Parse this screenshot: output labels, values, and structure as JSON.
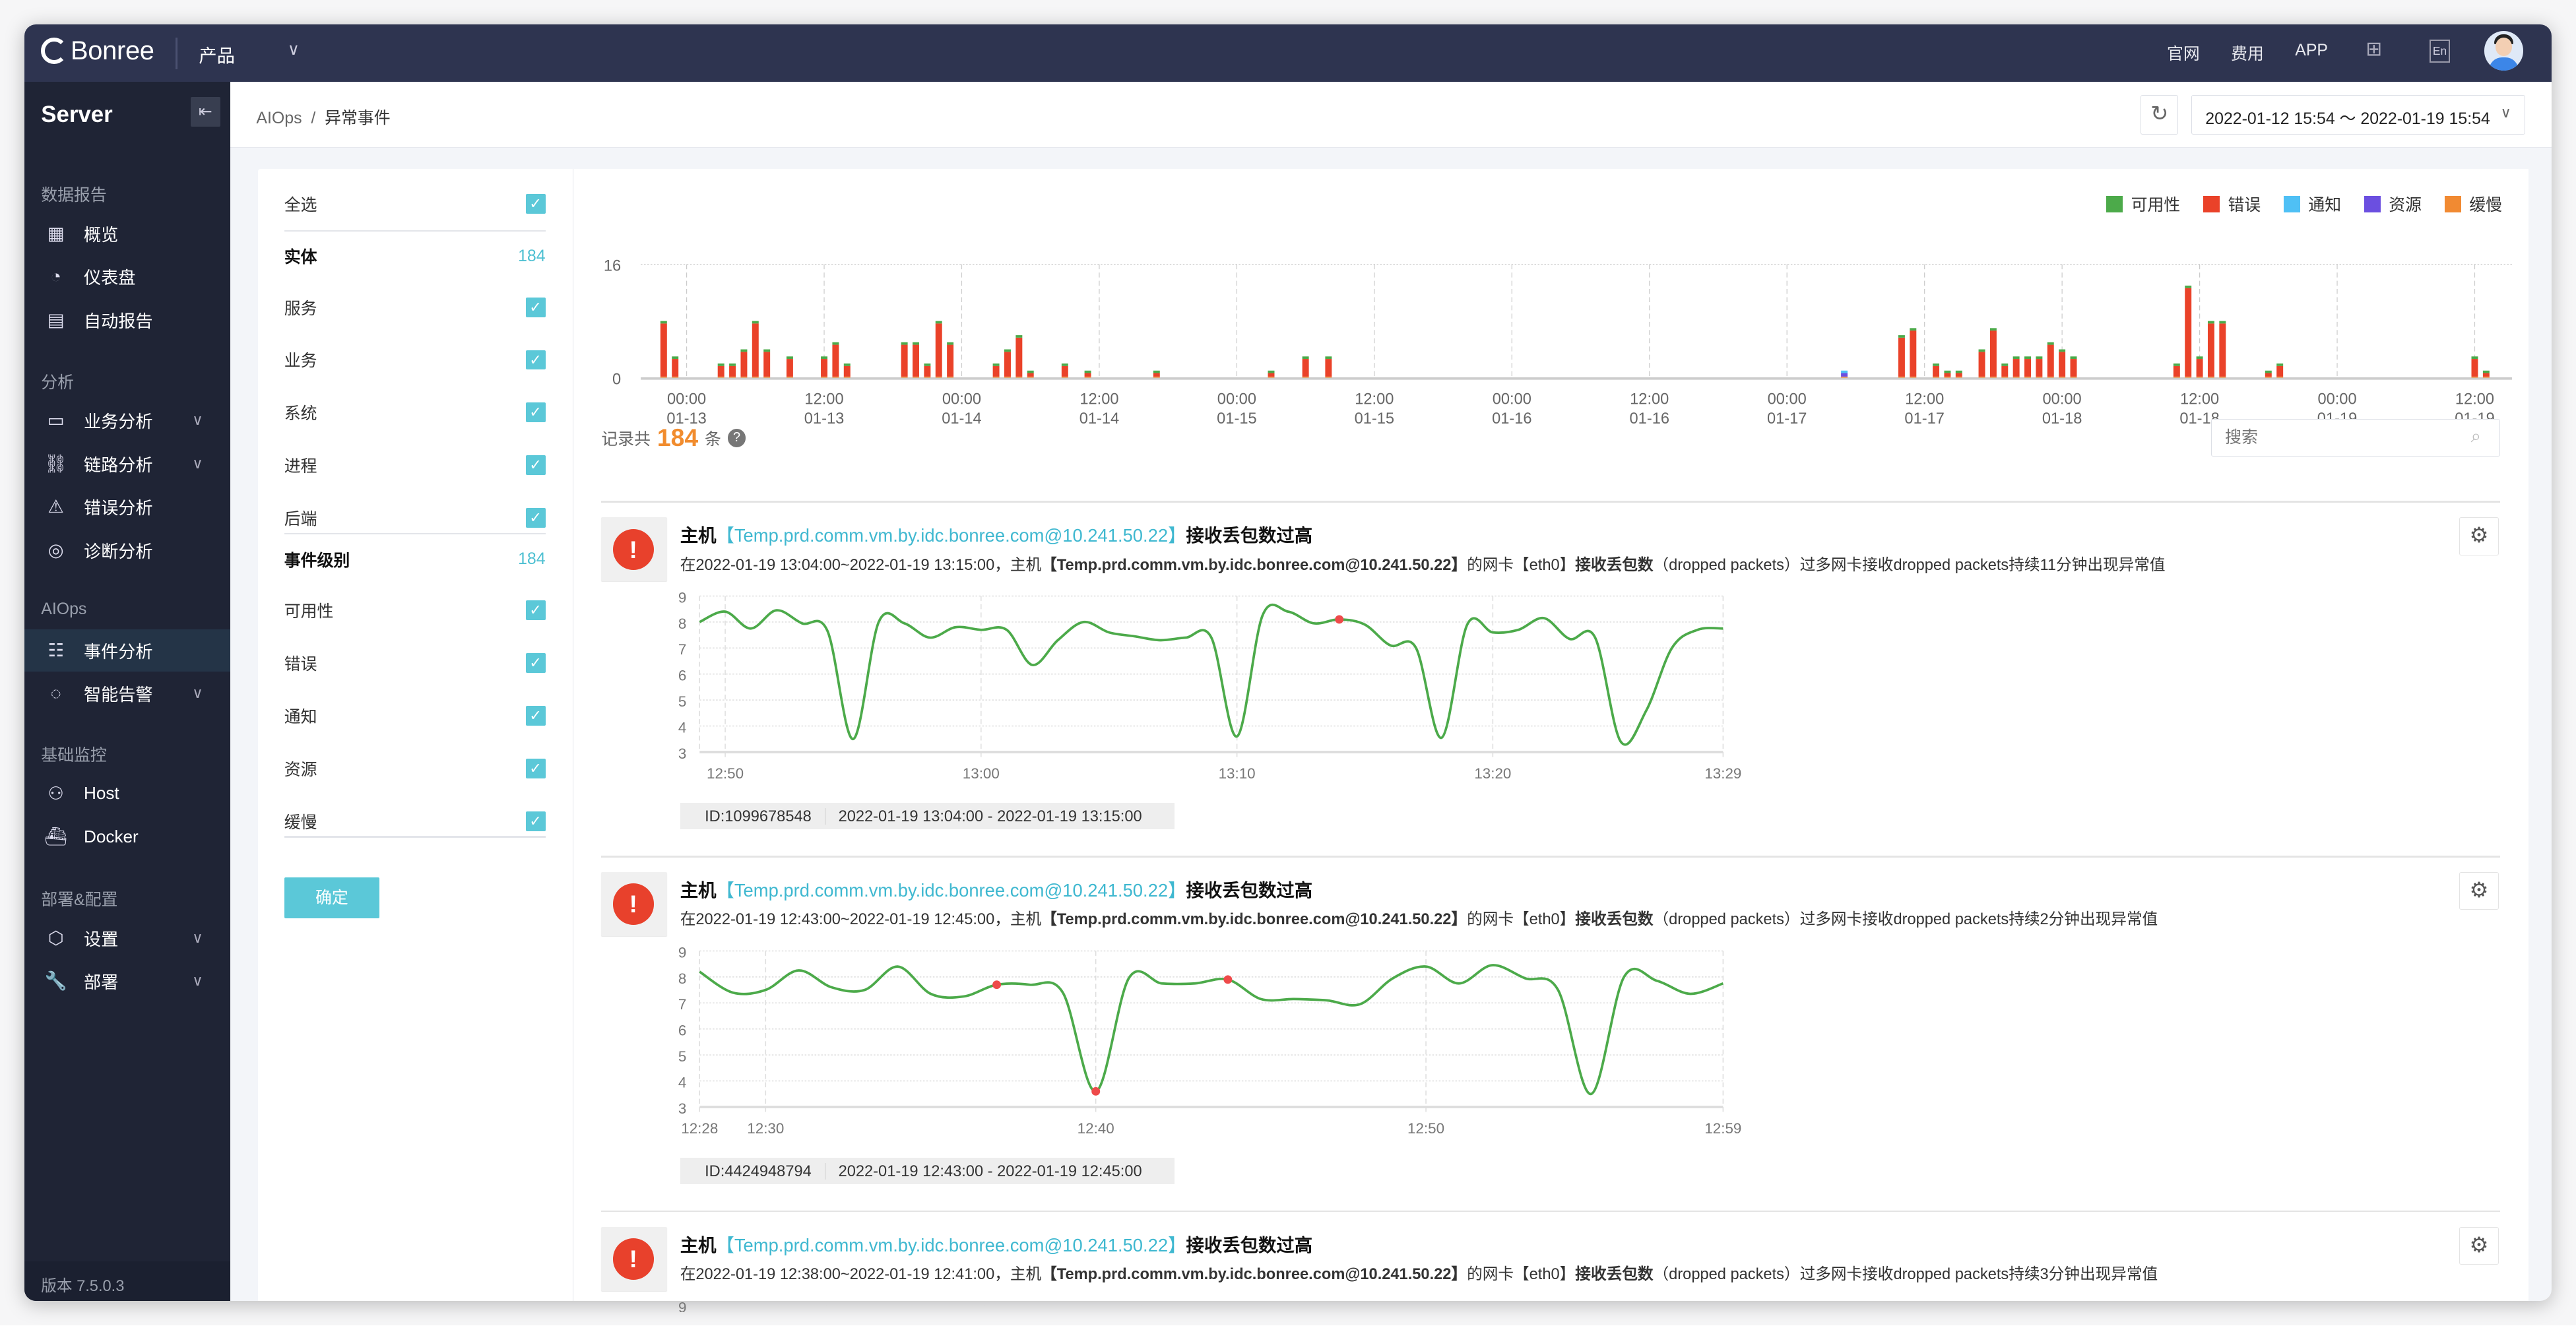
{
  "topbar": {
    "brand": "Bonree",
    "product_menu": "产品",
    "links": [
      "官网",
      "费用",
      "APP"
    ],
    "icons": [
      "qrcode-icon",
      "language-en-icon"
    ],
    "lang_label": "En"
  },
  "sidebar": {
    "title": "Server",
    "version": "版本 7.5.0.3",
    "sections": [
      {
        "label": "数据报告",
        "items": [
          {
            "label": "概览",
            "icon": "grid-icon",
            "glyph": "▦"
          },
          {
            "label": "仪表盘",
            "icon": "gauge-icon",
            "glyph": "◔"
          },
          {
            "label": "自动报告",
            "icon": "report-icon",
            "glyph": "▤"
          }
        ]
      },
      {
        "label": "分析",
        "items": [
          {
            "label": "业务分析",
            "icon": "monitor-chart-icon",
            "glyph": "▭",
            "expandable": true
          },
          {
            "label": "链路分析",
            "icon": "link-icon",
            "glyph": "⛓",
            "expandable": true
          },
          {
            "label": "错误分析",
            "icon": "warning-icon",
            "glyph": "⚠"
          },
          {
            "label": "诊断分析",
            "icon": "pulse-icon",
            "glyph": "◎"
          }
        ]
      },
      {
        "label": "AIOps",
        "items": [
          {
            "label": "事件分析",
            "icon": "event-list-icon",
            "glyph": "☷",
            "active": true
          },
          {
            "label": "智能告警",
            "icon": "alarm-icon",
            "glyph": "◌",
            "expandable": true
          }
        ]
      },
      {
        "label": "基础监控",
        "items": [
          {
            "label": "Host",
            "icon": "host-icon",
            "glyph": "⚇"
          },
          {
            "label": "Docker",
            "icon": "docker-icon",
            "glyph": "⛴"
          }
        ]
      },
      {
        "label": "部署&配置",
        "items": [
          {
            "label": "设置",
            "icon": "settings-icon",
            "glyph": "⬡",
            "expandable": true
          },
          {
            "label": "部署",
            "icon": "wrench-icon",
            "glyph": "🔧",
            "expandable": true
          }
        ]
      }
    ]
  },
  "header": {
    "breadcrumb": [
      "AIOps",
      "异常事件"
    ],
    "date_range": "2022-01-12 15:54 ～ 2022-01-19 15:54"
  },
  "filter": {
    "select_all": {
      "label": "全选",
      "checked": true
    },
    "groups": [
      {
        "label": "实体",
        "count": "184",
        "items": [
          {
            "label": "服务",
            "checked": true
          },
          {
            "label": "业务",
            "checked": true
          },
          {
            "label": "系统",
            "checked": true
          },
          {
            "label": "进程",
            "checked": true
          },
          {
            "label": "后端",
            "checked": true
          }
        ]
      },
      {
        "label": "事件级别",
        "count": "184",
        "items": [
          {
            "label": "可用性",
            "checked": true
          },
          {
            "label": "错误",
            "checked": true
          },
          {
            "label": "通知",
            "checked": true
          },
          {
            "label": "资源",
            "checked": true
          },
          {
            "label": "缓慢",
            "checked": true
          }
        ]
      }
    ],
    "confirm": "确定"
  },
  "summary": {
    "prefix": "记录共",
    "count": "184",
    "suffix": "条"
  },
  "search": {
    "placeholder": "搜索",
    "value": ""
  },
  "chart_data": [
    {
      "type": "bar",
      "stacked": true,
      "ylim": [
        0,
        16
      ],
      "yticks": [
        "0",
        "16"
      ],
      "xlim": [
        "01-12 20:00",
        "01-19 15:15"
      ],
      "xticks": [
        [
          "00:00",
          "01-13"
        ],
        [
          "12:00",
          "01-13"
        ],
        [
          "00:00",
          "01-14"
        ],
        [
          "12:00",
          "01-14"
        ],
        [
          "00:00",
          "01-15"
        ],
        [
          "12:00",
          "01-15"
        ],
        [
          "00:00",
          "01-16"
        ],
        [
          "12:00",
          "01-16"
        ],
        [
          "00:00",
          "01-17"
        ],
        [
          "12:00",
          "01-17"
        ],
        [
          "00:00",
          "01-18"
        ],
        [
          "12:00",
          "01-18"
        ],
        [
          "00:00",
          "01-19"
        ],
        [
          "12:00",
          "01-19"
        ]
      ],
      "legend_position": "top-right",
      "grid": true,
      "categories": [
        "01-12 22:00",
        "01-12 23:00",
        "01-13 03:00",
        "01-13 04:00",
        "01-13 05:00",
        "01-13 06:00",
        "01-13 07:00",
        "01-13 09:00",
        "01-13 12:00",
        "01-13 13:00",
        "01-13 14:00",
        "01-13 19:00",
        "01-13 20:00",
        "01-13 21:00",
        "01-13 22:00",
        "01-13 23:00",
        "01-14 03:00",
        "01-14 04:00",
        "01-14 05:00",
        "01-14 06:00",
        "01-14 09:00",
        "01-14 11:00",
        "01-14 17:00",
        "01-15 03:00",
        "01-15 06:00",
        "01-15 08:00",
        "01-17 05:00",
        "01-17 10:00",
        "01-17 11:00",
        "01-17 13:00",
        "01-17 14:00",
        "01-17 15:00",
        "01-17 17:00",
        "01-17 18:00",
        "01-17 19:00",
        "01-17 20:00",
        "01-17 21:00",
        "01-17 22:00",
        "01-17 23:00",
        "01-18 00:00",
        "01-18 01:00",
        "01-18 10:00",
        "01-18 11:00",
        "01-18 12:00",
        "01-18 13:00",
        "01-18 14:00",
        "01-18 18:00",
        "01-18 19:00",
        "01-19 12:00",
        "01-19 13:00"
      ],
      "series": [
        {
          "name": "缓慢",
          "color": "#f18a32",
          "values": [
            0.15,
            0.15,
            0.15,
            0.15,
            0.15,
            0.15,
            0.15,
            0.15,
            0.15,
            0.15,
            0.15,
            0.15,
            0.15,
            0.15,
            0.15,
            0.15,
            0.15,
            0.15,
            0.15,
            0.15,
            0.15,
            0.15,
            0.15,
            0.15,
            0.15,
            0.15,
            0.15,
            0.15,
            0.15,
            0.15,
            0.15,
            0.15,
            0.15,
            0.15,
            0.15,
            0.15,
            0.15,
            0.15,
            0.15,
            0.15,
            0.15,
            0.15,
            0.15,
            0.15,
            0.15,
            0.15,
            0.15,
            0.15,
            0.15,
            0.15
          ]
        },
        {
          "name": "错误",
          "color": "#ea4229",
          "values": [
            7.5,
            2.5,
            1.5,
            1.5,
            3.5,
            7.5,
            3.5,
            2.5,
            2.5,
            4.5,
            1.5,
            4.5,
            4.5,
            1.5,
            7.5,
            4.5,
            1.5,
            3.5,
            5.5,
            0.5,
            1.5,
            0.5,
            0.5,
            0.5,
            2.5,
            2.5,
            0,
            5.5,
            6.5,
            1.5,
            0.5,
            0.5,
            3.5,
            6.5,
            1.5,
            2.5,
            2.5,
            2.5,
            4.5,
            3.5,
            2.5,
            1.5,
            12.5,
            2.5,
            7.5,
            7.5,
            0.5,
            1.5,
            2.5,
            0.5
          ]
        },
        {
          "name": "资源",
          "color": "#6b4fe0",
          "values": [
            0,
            0,
            0,
            0,
            0,
            0,
            0,
            0,
            0,
            0,
            0,
            0,
            0,
            0,
            0,
            0,
            0,
            0,
            0,
            0,
            0,
            0,
            0,
            0,
            0,
            0,
            0.5,
            0,
            0,
            0,
            0,
            0,
            0,
            0,
            0,
            0,
            0,
            0,
            0,
            0,
            0,
            0,
            0,
            0,
            0,
            0,
            0,
            0,
            0,
            0
          ]
        },
        {
          "name": "通知",
          "color": "#4fc0f5",
          "values": [
            0,
            0,
            0,
            0,
            0,
            0,
            0,
            0,
            0,
            0,
            0,
            0,
            0,
            0,
            0,
            0,
            0,
            0,
            0,
            0,
            0,
            0,
            0,
            0,
            0,
            0,
            0.35,
            0,
            0,
            0,
            0,
            0,
            0,
            0,
            0,
            0,
            0,
            0,
            0,
            0,
            0,
            0,
            0,
            0,
            0,
            0,
            0,
            0,
            0,
            0
          ]
        },
        {
          "name": "可用性",
          "color": "#4caa4a",
          "values": [
            0.35,
            0.35,
            0.35,
            0.35,
            0.35,
            0.35,
            0.35,
            0.35,
            0.35,
            0.35,
            0.35,
            0.35,
            0.35,
            0.35,
            0.35,
            0.35,
            0.35,
            0.35,
            0.35,
            0.35,
            0.35,
            0.35,
            0.35,
            0.35,
            0.35,
            0.35,
            0,
            0.35,
            0.35,
            0.35,
            0.35,
            0.35,
            0.35,
            0.35,
            0.35,
            0.35,
            0.35,
            0.35,
            0.35,
            0.35,
            0.35,
            0.35,
            0.35,
            0.35,
            0.35,
            0.35,
            0.35,
            0.35,
            0.35,
            0.35
          ]
        }
      ],
      "legend": [
        "可用性",
        "错误",
        "通知",
        "资源",
        "缓慢"
      ],
      "legend_colors": [
        "#4caa4a",
        "#ea4229",
        "#4fc0f5",
        "#6b4fe0",
        "#f18a32"
      ]
    },
    {
      "type": "line",
      "ylim": [
        3,
        9
      ],
      "yticks": [
        "3",
        "4",
        "5",
        "6",
        "7",
        "8",
        "9"
      ],
      "xlim": [
        "12:49",
        "13:29"
      ],
      "xticks": [
        "12:50",
        "13:00",
        "13:10",
        "13:20",
        "13:29"
      ],
      "grid": true,
      "color": "#4caa4a",
      "x": [
        "12:49",
        "12:50",
        "12:51",
        "12:52",
        "12:53",
        "12:54",
        "12:55",
        "12:56",
        "12:57",
        "12:58",
        "12:59",
        "13:00",
        "13:01",
        "13:02",
        "13:03",
        "13:04",
        "13:05",
        "13:06",
        "13:07",
        "13:08",
        "13:09",
        "13:10",
        "13:11",
        "13:12",
        "13:13",
        "13:14",
        "13:15",
        "13:16",
        "13:17",
        "13:18",
        "13:19",
        "13:20",
        "13:21",
        "13:22",
        "13:23",
        "13:24",
        "13:25",
        "13:26",
        "13:27",
        "13:28",
        "13:29"
      ],
      "y": [
        8.0,
        8.4,
        7.75,
        8.45,
        7.95,
        7.65,
        3.5,
        8.0,
        7.95,
        7.4,
        7.8,
        7.7,
        7.7,
        6.35,
        7.3,
        8.0,
        7.6,
        7.45,
        7.3,
        7.4,
        7.4,
        3.6,
        8.25,
        8.4,
        7.95,
        8.1,
        7.9,
        7.1,
        7.0,
        3.55,
        7.9,
        7.6,
        7.7,
        8.15,
        7.35,
        7.4,
        3.4,
        4.6,
        7.0,
        7.7,
        7.75
      ],
      "anomalies": [
        "13:14"
      ]
    },
    {
      "type": "line",
      "ylim": [
        3,
        9
      ],
      "yticks": [
        "3",
        "4",
        "5",
        "6",
        "7",
        "8",
        "9"
      ],
      "xlim": [
        "12:28",
        "12:59"
      ],
      "xticks": [
        "12:28",
        "12:30",
        "12:40",
        "12:50",
        "12:59"
      ],
      "grid": true,
      "color": "#4caa4a",
      "x": [
        "12:28",
        "12:29",
        "12:30",
        "12:31",
        "12:32",
        "12:33",
        "12:34",
        "12:35",
        "12:36",
        "12:37",
        "12:38",
        "12:39",
        "12:40",
        "12:41",
        "12:42",
        "12:43",
        "12:44",
        "12:45",
        "12:46",
        "12:47",
        "12:48",
        "12:49",
        "12:50",
        "12:51",
        "12:52",
        "12:53",
        "12:54",
        "12:55",
        "12:56",
        "12:57",
        "12:58",
        "12:59"
      ],
      "y": [
        8.2,
        7.4,
        7.5,
        8.25,
        7.6,
        7.5,
        8.4,
        7.35,
        7.25,
        7.7,
        7.7,
        7.4,
        3.6,
        7.95,
        7.75,
        7.75,
        7.9,
        7.15,
        7.15,
        7.1,
        6.95,
        7.95,
        8.4,
        7.75,
        8.45,
        7.95,
        7.5,
        3.5,
        8.0,
        7.85,
        7.35,
        7.75
      ],
      "anomalies": [
        "12:37",
        "12:40",
        "12:44"
      ]
    },
    {
      "type": "line",
      "yticks": [
        "9"
      ],
      "grid": true
    }
  ],
  "events": [
    {
      "title_prefix": "主机",
      "host": "【Temp.prd.comm.vm.by.idc.bonree.com@10.241.50.22】",
      "title_suffix": "接收丢包数过高",
      "desc_a": "在2022-01-19 13:04:00~2022-01-19 13:15:00，主机",
      "desc_host": "【Temp.prd.comm.vm.by.idc.bonree.com@10.241.50.22】",
      "desc_b": "的网卡【eth0】",
      "desc_metric": "接收丢包数",
      "desc_c": "（dropped packets）过多网卡接收dropped packets持续11分钟出现异常值",
      "id": "ID:1099678548",
      "range": "2022-01-19 13:04:00 - 2022-01-19 13:15:00"
    },
    {
      "title_prefix": "主机",
      "host": "【Temp.prd.comm.vm.by.idc.bonree.com@10.241.50.22】",
      "title_suffix": "接收丢包数过高",
      "desc_a": "在2022-01-19 12:43:00~2022-01-19 12:45:00，主机",
      "desc_host": "【Temp.prd.comm.vm.by.idc.bonree.com@10.241.50.22】",
      "desc_b": "的网卡【eth0】",
      "desc_metric": "接收丢包数",
      "desc_c": "（dropped packets）过多网卡接收dropped packets持续2分钟出现异常值",
      "id": "ID:4424948794",
      "range": "2022-01-19 12:43:00 - 2022-01-19 12:45:00"
    },
    {
      "title_prefix": "主机",
      "host": "【Temp.prd.comm.vm.by.idc.bonree.com@10.241.50.22】",
      "title_suffix": "接收丢包数过高",
      "desc_a": "在2022-01-19 12:38:00~2022-01-19 12:41:00，主机",
      "desc_host": "【Temp.prd.comm.vm.by.idc.bonree.com@10.241.50.22】",
      "desc_b": "的网卡【eth0】",
      "desc_metric": "接收丢包数",
      "desc_c": "（dropped packets）过多网卡接收dropped packets持续3分钟出现异常值"
    }
  ],
  "colors": {
    "topbar": "#2e3450",
    "sidebar": "#1f2435",
    "accent": "#5bc8d8",
    "link": "#3fb8d0",
    "count": "#f18c2e",
    "alert": "#e8412c"
  }
}
